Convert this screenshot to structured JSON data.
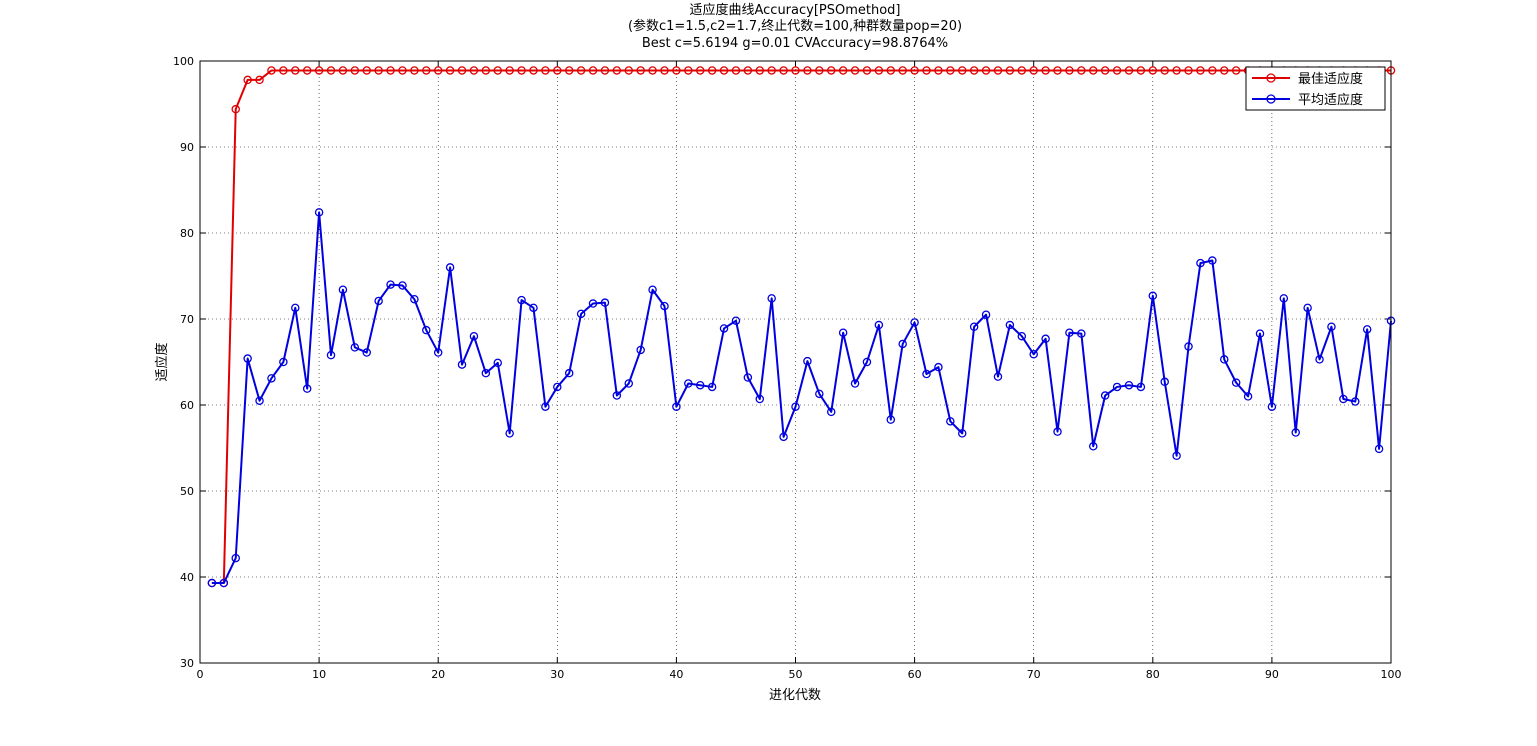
{
  "chart_data": {
    "type": "line",
    "title": "适应度曲线Accuracy[PSOmethod]",
    "subtitle_lines": [
      "(参数c1=1.5,c2=1.7,终止代数=100,种群数量pop=20)",
      "Best c=5.6194 g=0.01 CVAccuracy=98.8764%"
    ],
    "xlabel": "进化代数",
    "ylabel": "适应度",
    "xlim": [
      0,
      100
    ],
    "ylim": [
      30,
      100
    ],
    "xticks": [
      0,
      10,
      20,
      30,
      40,
      50,
      60,
      70,
      80,
      90,
      100
    ],
    "yticks": [
      30,
      40,
      50,
      60,
      70,
      80,
      90,
      100
    ],
    "grid": true,
    "legend_position": "top-right",
    "x": [
      1,
      2,
      3,
      4,
      5,
      6,
      7,
      8,
      9,
      10,
      11,
      12,
      13,
      14,
      15,
      16,
      17,
      18,
      19,
      20,
      21,
      22,
      23,
      24,
      25,
      26,
      27,
      28,
      29,
      30,
      31,
      32,
      33,
      34,
      35,
      36,
      37,
      38,
      39,
      40,
      41,
      42,
      43,
      44,
      45,
      46,
      47,
      48,
      49,
      50,
      51,
      52,
      53,
      54,
      55,
      56,
      57,
      58,
      59,
      60,
      61,
      62,
      63,
      64,
      65,
      66,
      67,
      68,
      69,
      70,
      71,
      72,
      73,
      74,
      75,
      76,
      77,
      78,
      79,
      80,
      81,
      82,
      83,
      84,
      85,
      86,
      87,
      88,
      89,
      90,
      91,
      92,
      93,
      94,
      95,
      96,
      97,
      98,
      99,
      100
    ],
    "series": [
      {
        "name": "最佳适应度",
        "color": "#e00000",
        "values": [
          39.3,
          39.3,
          94.4,
          97.8,
          97.8,
          98.9,
          98.9,
          98.9,
          98.9,
          98.9,
          98.9,
          98.9,
          98.9,
          98.9,
          98.9,
          98.9,
          98.9,
          98.9,
          98.9,
          98.9,
          98.9,
          98.9,
          98.9,
          98.9,
          98.9,
          98.9,
          98.9,
          98.9,
          98.9,
          98.9,
          98.9,
          98.9,
          98.9,
          98.9,
          98.9,
          98.9,
          98.9,
          98.9,
          98.9,
          98.9,
          98.9,
          98.9,
          98.9,
          98.9,
          98.9,
          98.9,
          98.9,
          98.9,
          98.9,
          98.9,
          98.9,
          98.9,
          98.9,
          98.9,
          98.9,
          98.9,
          98.9,
          98.9,
          98.9,
          98.9,
          98.9,
          98.9,
          98.9,
          98.9,
          98.9,
          98.9,
          98.9,
          98.9,
          98.9,
          98.9,
          98.9,
          98.9,
          98.9,
          98.9,
          98.9,
          98.9,
          98.9,
          98.9,
          98.9,
          98.9,
          98.9,
          98.9,
          98.9,
          98.9,
          98.9,
          98.9,
          98.9,
          98.9,
          98.9,
          98.9,
          98.9,
          98.9,
          98.9,
          98.9,
          98.9,
          98.9,
          98.9,
          98.9,
          98.9,
          98.9
        ]
      },
      {
        "name": "平均适应度",
        "color": "#0000e0",
        "values": [
          39.3,
          39.3,
          42.2,
          65.4,
          60.5,
          63.1,
          65.0,
          71.3,
          61.9,
          82.4,
          65.8,
          73.4,
          66.7,
          66.1,
          72.1,
          74.0,
          73.9,
          72.3,
          68.7,
          66.1,
          76.0,
          64.7,
          68.0,
          63.7,
          64.9,
          56.7,
          72.2,
          71.3,
          59.8,
          62.1,
          63.7,
          70.6,
          71.8,
          71.9,
          61.1,
          62.5,
          66.4,
          73.4,
          71.5,
          59.8,
          62.5,
          62.3,
          62.1,
          68.9,
          69.8,
          63.2,
          60.7,
          72.4,
          56.3,
          59.8,
          65.1,
          61.3,
          59.2,
          68.4,
          62.5,
          65.0,
          69.3,
          58.3,
          67.1,
          69.6,
          63.6,
          64.4,
          58.1,
          56.7,
          69.1,
          70.5,
          63.3,
          69.3,
          68.0,
          65.9,
          67.7,
          56.9,
          68.4,
          68.3,
          55.2,
          61.1,
          62.1,
          62.3,
          62.1,
          72.7,
          62.7,
          54.1,
          66.8,
          76.5,
          76.8,
          65.3,
          62.6,
          61.0,
          68.3,
          59.8,
          72.4,
          56.8,
          71.3,
          65.3,
          69.1,
          60.7,
          60.4,
          68.8,
          54.9,
          69.8
        ]
      }
    ]
  }
}
